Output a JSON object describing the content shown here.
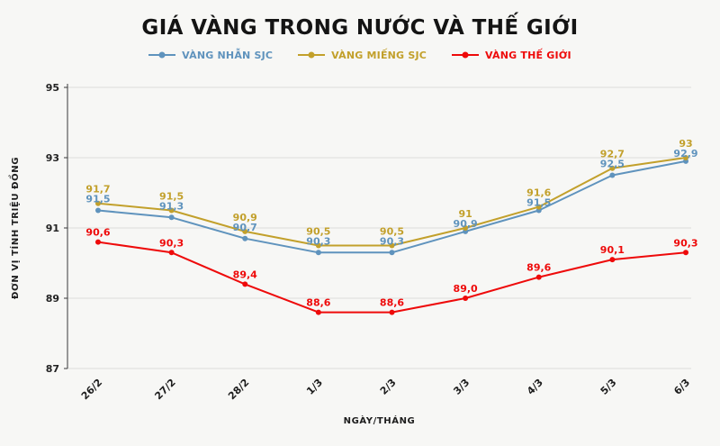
{
  "page": {
    "background": "#f7f7f5"
  },
  "chart_data": {
    "type": "line",
    "title": "GIÁ VÀNG TRONG NƯỚC VÀ THẾ GIỚI",
    "categories": [
      "26/2",
      "27/2",
      "28/2",
      "1/3",
      "2/3",
      "3/3",
      "4/3",
      "5/3",
      "6/3"
    ],
    "xlabel": "NGÀY/THÁNG",
    "ylabel": "ĐƠN VỊ TÍNH TRIỆU ĐỒNG",
    "ylim": [
      87,
      95
    ],
    "yticks": [
      87,
      89,
      91,
      93,
      95
    ],
    "grid": true,
    "legend_position": "top",
    "grid_color": "#dcdcdc",
    "axis_color": "#3a3a3a",
    "series": [
      {
        "name": "VÀNG NHẪN SJC",
        "color": "#5f93bd",
        "values": [
          91.5,
          91.3,
          90.7,
          90.3,
          90.3,
          90.9,
          91.5,
          92.5,
          92.9
        ],
        "labels": [
          "91,5",
          "91,3",
          "90,7",
          "90,3",
          "90,3",
          "90,9",
          "91,5",
          "92,5",
          "92,9"
        ]
      },
      {
        "name": "VÀNG MIẾNG SJC",
        "color": "#c2a02b",
        "values": [
          91.7,
          91.5,
          90.9,
          90.5,
          90.5,
          91.0,
          91.6,
          92.7,
          93.0
        ],
        "labels": [
          "91,7",
          "91,5",
          "90,9",
          "90,5",
          "90,5",
          "91",
          "91,6",
          "92,7",
          "93"
        ]
      },
      {
        "name": "VÀNG THẾ GIỚI",
        "color": "#ee0a0a",
        "values": [
          90.6,
          90.3,
          89.4,
          88.6,
          88.6,
          89.0,
          89.6,
          90.1,
          90.3
        ],
        "labels": [
          "90,6",
          "90,3",
          "89,4",
          "88,6",
          "88,6",
          "89,0",
          "89,6",
          "90,1",
          "90,3"
        ]
      }
    ]
  }
}
